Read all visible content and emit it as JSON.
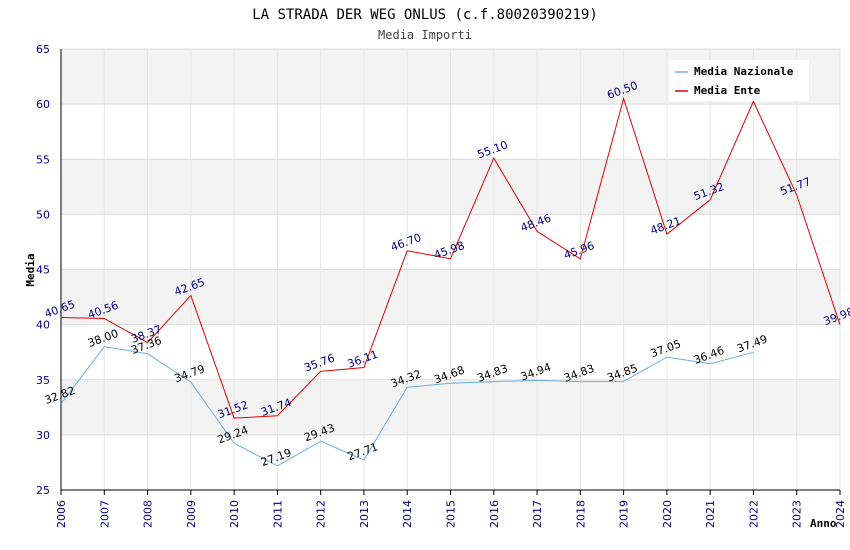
{
  "chart_data": {
    "type": "line",
    "title": "LA STRADA DER WEG ONLUS (c.f.80020390219)",
    "subtitle": "Media Importi",
    "xlabel": "Anno",
    "ylabel": "Media",
    "ylim": [
      25,
      65
    ],
    "yticks": [
      25,
      30,
      35,
      40,
      45,
      50,
      55,
      60,
      65
    ],
    "categories": [
      "2006",
      "2007",
      "2008",
      "2009",
      "2010",
      "2011",
      "2012",
      "2013",
      "2014",
      "2015",
      "2016",
      "2017",
      "2018",
      "2019",
      "2020",
      "2021",
      "2022",
      "2023",
      "2024"
    ],
    "legend_position": "top-right",
    "series": [
      {
        "name": "Media Nazionale",
        "color": "#6aaee6",
        "label_color": "#000000",
        "values": [
          32.82,
          38.0,
          37.36,
          34.79,
          29.24,
          27.19,
          29.43,
          27.71,
          34.32,
          34.68,
          34.83,
          34.94,
          34.83,
          34.85,
          37.05,
          36.46,
          37.49,
          null,
          null
        ],
        "labels": [
          "32.82",
          "38.00",
          "37.36",
          "34.79",
          "29.24",
          "27.19",
          "29.43",
          "27.71",
          "34.32",
          "34.68",
          "34.83",
          "34.94",
          "34.83",
          "34.85",
          "37.05",
          "36.46",
          "37.49",
          null,
          null
        ]
      },
      {
        "name": "Media Ente",
        "color": "#e00000",
        "label_color": "#000080",
        "values": [
          40.65,
          40.56,
          38.37,
          42.65,
          31.52,
          31.74,
          35.76,
          36.11,
          46.7,
          45.98,
          55.1,
          48.46,
          45.96,
          60.5,
          48.21,
          51.32,
          60.25,
          51.77,
          39.98
        ],
        "labels": [
          "40.65",
          "40.56",
          "38.37",
          "42.65",
          "31.52",
          "31.74",
          "35.76",
          "36.11",
          "46.70",
          "45.98",
          "55.10",
          "48.46",
          "45.96",
          "60.50",
          "48.21",
          "51.32",
          null,
          "51.77",
          "39.98"
        ]
      }
    ]
  }
}
